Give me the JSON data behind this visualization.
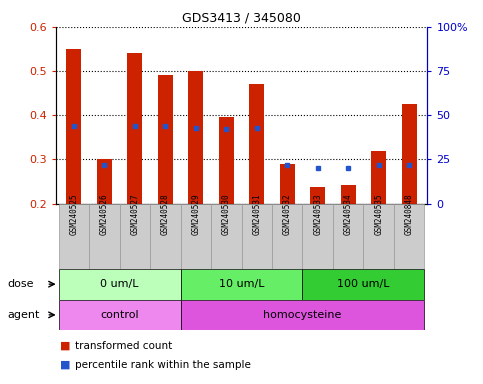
{
  "title": "GDS3413 / 345080",
  "samples": [
    "GSM240525",
    "GSM240526",
    "GSM240527",
    "GSM240528",
    "GSM240529",
    "GSM240530",
    "GSM240531",
    "GSM240532",
    "GSM240533",
    "GSM240534",
    "GSM240535",
    "GSM240848"
  ],
  "transformed_count": [
    0.55,
    0.3,
    0.54,
    0.49,
    0.5,
    0.395,
    0.47,
    0.29,
    0.237,
    0.243,
    0.32,
    0.425
  ],
  "percentile_rank": [
    44,
    22,
    44,
    44,
    43,
    42,
    43,
    22,
    20,
    20,
    22,
    22
  ],
  "bar_bottom": 0.2,
  "ylim_left": [
    0.2,
    0.6
  ],
  "ylim_right": [
    0,
    100
  ],
  "yticks_left": [
    0.2,
    0.3,
    0.4,
    0.5,
    0.6
  ],
  "yticks_right": [
    0,
    25,
    50,
    75,
    100
  ],
  "bar_color": "#cc2200",
  "dot_color": "#2255cc",
  "dose_groups": [
    {
      "label": "0 um/L",
      "start": 0,
      "end": 4,
      "color": "#bbffbb"
    },
    {
      "label": "10 um/L",
      "start": 4,
      "end": 8,
      "color": "#66ee66"
    },
    {
      "label": "100 um/L",
      "start": 8,
      "end": 12,
      "color": "#33cc33"
    }
  ],
  "agent_groups": [
    {
      "label": "control",
      "start": 0,
      "end": 4,
      "color": "#ee88ee"
    },
    {
      "label": "homocysteine",
      "start": 4,
      "end": 12,
      "color": "#dd55dd"
    }
  ],
  "dose_label": "dose",
  "agent_label": "agent",
  "legend_red": "transformed count",
  "legend_blue": "percentile rank within the sample",
  "bar_color_left_tick": "#cc2200",
  "bar_color_right_tick": "#0000cc",
  "xticklabel_bg": "#cccccc",
  "xticklabel_border": "#999999"
}
